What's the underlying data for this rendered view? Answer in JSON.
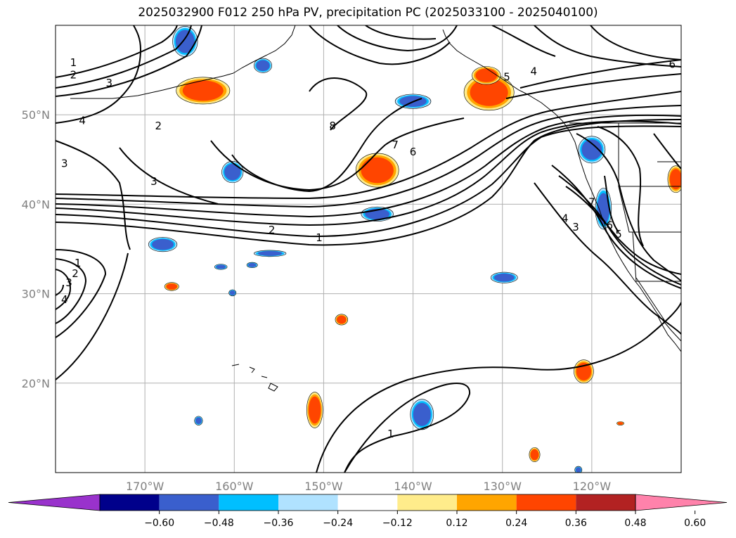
{
  "title": "2025032900 F012 250 hPa PV, precipitation PC (2025033100 - 2025040100)",
  "map": {
    "lon_range": [
      -180,
      -110
    ],
    "lat_range": [
      10,
      60
    ],
    "lat_labels": [
      {
        "lat": 50,
        "text": "50°N"
      },
      {
        "lat": 40,
        "text": "40°N"
      },
      {
        "lat": 30,
        "text": "30°N"
      },
      {
        "lat": 20,
        "text": "20°N"
      }
    ],
    "lon_labels": [
      {
        "lon": -170,
        "text": "170°W"
      },
      {
        "lon": -160,
        "text": "160°W"
      },
      {
        "lon": -150,
        "text": "150°W"
      },
      {
        "lon": -140,
        "text": "140°W"
      },
      {
        "lon": -130,
        "text": "130°W"
      },
      {
        "lon": -120,
        "text": "120°W"
      }
    ],
    "contour_labels": [
      {
        "text": "1",
        "lon": -178,
        "lat": 55.8
      },
      {
        "text": "2",
        "lon": -178,
        "lat": 54.4
      },
      {
        "text": "3",
        "lon": -174,
        "lat": 53.5
      },
      {
        "text": "4",
        "lon": -177,
        "lat": 49.3
      },
      {
        "text": "2",
        "lon": -168.5,
        "lat": 48.7
      },
      {
        "text": "3",
        "lon": -179,
        "lat": 44.5
      },
      {
        "text": "3",
        "lon": -169,
        "lat": 42.5
      },
      {
        "text": "8",
        "lon": -149,
        "lat": 48.7
      },
      {
        "text": "7",
        "lon": -142,
        "lat": 46.6
      },
      {
        "text": "6",
        "lon": -140,
        "lat": 45.8
      },
      {
        "text": "4",
        "lon": -126.5,
        "lat": 54.8
      },
      {
        "text": "5",
        "lon": -129.5,
        "lat": 54.2
      },
      {
        "text": "6",
        "lon": -111,
        "lat": 55.6
      },
      {
        "text": "2",
        "lon": -155.8,
        "lat": 37.1
      },
      {
        "text": "1",
        "lon": -150.5,
        "lat": 36.2
      },
      {
        "text": "7",
        "lon": -120,
        "lat": 40.2
      },
      {
        "text": "4",
        "lon": -123,
        "lat": 38.4
      },
      {
        "text": "3",
        "lon": -121.8,
        "lat": 37.4
      },
      {
        "text": "6",
        "lon": -118,
        "lat": 37.6
      },
      {
        "text": "5",
        "lon": -117,
        "lat": 36.6
      },
      {
        "text": "1",
        "lon": -177.5,
        "lat": 33.4
      },
      {
        "text": "2",
        "lon": -177.8,
        "lat": 32.2
      },
      {
        "text": "3",
        "lon": -178.5,
        "lat": 31.2
      },
      {
        "text": "4",
        "lon": -179,
        "lat": 29.3
      },
      {
        "text": "1",
        "lon": -142.5,
        "lat": 14.3
      }
    ],
    "precip_areas": [
      {
        "sign": "positive",
        "lon": -163.5,
        "lat": 52.7,
        "rx": 3.0,
        "ry": 1.5
      },
      {
        "sign": "positive",
        "lon": -131.5,
        "lat": 52.5,
        "rx": 2.8,
        "ry": 2.0
      },
      {
        "sign": "positive",
        "lon": -131.8,
        "lat": 54.4,
        "rx": 1.6,
        "ry": 1.0
      },
      {
        "sign": "positive",
        "lon": -144.0,
        "lat": 43.8,
        "rx": 2.4,
        "ry": 1.9
      },
      {
        "sign": "positive",
        "lon": -110.6,
        "lat": 42.8,
        "rx": 0.9,
        "ry": 1.5
      },
      {
        "sign": "positive",
        "lon": -167.0,
        "lat": 30.8,
        "rx": 0.8,
        "ry": 0.45
      },
      {
        "sign": "positive",
        "lon": -148.0,
        "lat": 27.1,
        "rx": 0.7,
        "ry": 0.6
      },
      {
        "sign": "positive",
        "lon": -120.9,
        "lat": 21.3,
        "rx": 1.1,
        "ry": 1.3
      },
      {
        "sign": "positive",
        "lon": -151.0,
        "lat": 17.0,
        "rx": 0.9,
        "ry": 2.0
      },
      {
        "sign": "positive",
        "lon": -126.4,
        "lat": 12.0,
        "rx": 0.6,
        "ry": 0.8
      },
      {
        "sign": "positive",
        "lon": -116.8,
        "lat": 15.5,
        "rx": 0.4,
        "ry": 0.2
      },
      {
        "sign": "negative",
        "lon": -165.5,
        "lat": 58.2,
        "rx": 1.4,
        "ry": 1.7
      },
      {
        "sign": "negative",
        "lon": -156.8,
        "lat": 55.5,
        "rx": 1.0,
        "ry": 0.8
      },
      {
        "sign": "negative",
        "lon": -140.0,
        "lat": 51.5,
        "rx": 2.0,
        "ry": 0.8
      },
      {
        "sign": "negative",
        "lon": -160.2,
        "lat": 43.6,
        "rx": 1.2,
        "ry": 1.2
      },
      {
        "sign": "negative",
        "lon": -144.0,
        "lat": 38.9,
        "rx": 1.8,
        "ry": 0.8
      },
      {
        "sign": "negative",
        "lon": -120.0,
        "lat": 46.1,
        "rx": 1.5,
        "ry": 1.5
      },
      {
        "sign": "negative",
        "lon": -118.7,
        "lat": 39.5,
        "rx": 0.9,
        "ry": 2.3
      },
      {
        "sign": "negative",
        "lon": -168.0,
        "lat": 35.5,
        "rx": 1.6,
        "ry": 0.8
      },
      {
        "sign": "negative",
        "lon": -156.0,
        "lat": 34.5,
        "rx": 1.8,
        "ry": 0.35
      },
      {
        "sign": "negative",
        "lon": -158.0,
        "lat": 33.2,
        "rx": 0.6,
        "ry": 0.3
      },
      {
        "sign": "negative",
        "lon": -161.5,
        "lat": 33.0,
        "rx": 0.7,
        "ry": 0.3
      },
      {
        "sign": "negative",
        "lon": -160.2,
        "lat": 30.1,
        "rx": 0.4,
        "ry": 0.35
      },
      {
        "sign": "negative",
        "lon": -129.8,
        "lat": 31.8,
        "rx": 1.5,
        "ry": 0.6
      },
      {
        "sign": "negative",
        "lon": -139.0,
        "lat": 16.5,
        "rx": 1.3,
        "ry": 1.7
      },
      {
        "sign": "negative",
        "lon": -164.0,
        "lat": 15.8,
        "rx": 0.45,
        "ry": 0.5
      },
      {
        "sign": "negative",
        "lon": -121.5,
        "lat": 10.3,
        "rx": 0.4,
        "ry": 0.4
      }
    ]
  },
  "colorbar": {
    "colors": [
      "#9932cc",
      "#00008b",
      "#3a5fcd",
      "#00bfff",
      "#b0e2ff",
      "#ffffff",
      "#ffec8b",
      "#ffa500",
      "#ff4500",
      "#b22222",
      "#ff82ab"
    ],
    "ticks": [
      "−0.60",
      "−0.48",
      "−0.36",
      "−0.24",
      "−0.12",
      "0.12",
      "0.24",
      "0.36",
      "0.48",
      "0.60"
    ]
  }
}
